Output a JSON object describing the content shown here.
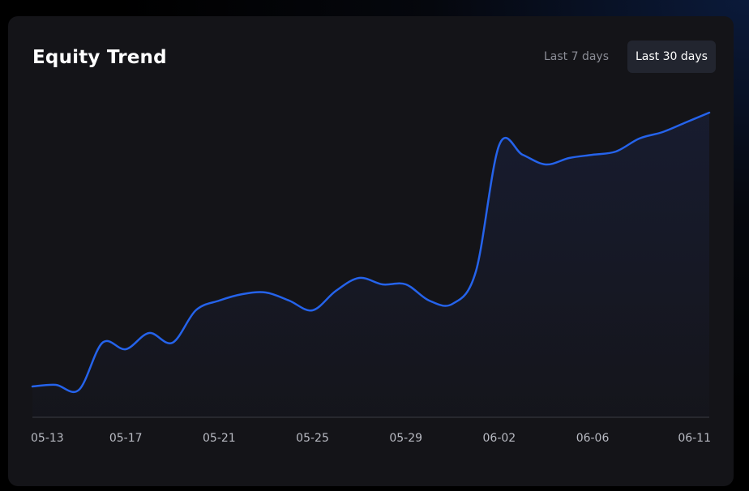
{
  "header": {
    "title": "Equity Trend",
    "tabs": [
      {
        "label": "Last 7 days",
        "active": false
      },
      {
        "label": "Last 30 days",
        "active": true
      }
    ]
  },
  "colors": {
    "line": "#2563eb",
    "card_background": "#141418",
    "active_tab_background": "#22252f"
  },
  "chart_data": {
    "type": "area",
    "title": "Equity Trend",
    "xlabel": "",
    "ylabel": "",
    "grid": false,
    "legend": "none",
    "x_tick_labels": [
      "05-13",
      "05-17",
      "05-21",
      "05-25",
      "05-29",
      "06-02",
      "06-06",
      "06-11"
    ],
    "ylim": [
      0,
      100
    ],
    "x": [
      "05-13",
      "05-14",
      "05-15",
      "05-16",
      "05-17",
      "05-18",
      "05-19",
      "05-20",
      "05-21",
      "05-22",
      "05-23",
      "05-24",
      "05-25",
      "05-26",
      "05-27",
      "05-28",
      "05-29",
      "05-30",
      "05-31",
      "06-01",
      "06-02",
      "06-03",
      "06-04",
      "06-05",
      "06-06",
      "06-07",
      "06-08",
      "06-09",
      "06-10",
      "06-11"
    ],
    "values": [
      9.5,
      10,
      8.5,
      23,
      21,
      26,
      23,
      33,
      36,
      38,
      38.5,
      36,
      33,
      39,
      43,
      41,
      41,
      36,
      35,
      45,
      84,
      81,
      78,
      80,
      81,
      82,
      86,
      88,
      91,
      94
    ]
  }
}
